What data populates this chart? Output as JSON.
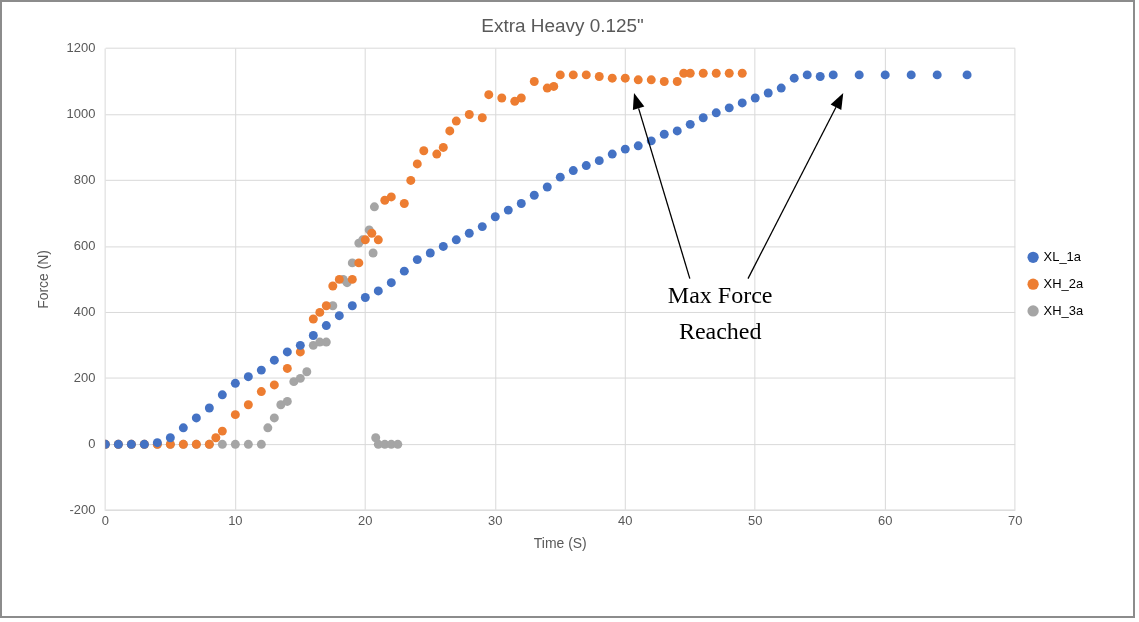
{
  "chart_data": {
    "type": "scatter",
    "title": "Extra Heavy 0.125\"",
    "xlabel": "Time (S)",
    "ylabel": "Force (N)",
    "xlim": [
      0,
      70
    ],
    "xticks": [
      0,
      10,
      20,
      30,
      40,
      50,
      60,
      70
    ],
    "ylim": [
      -200,
      1200
    ],
    "yticks": [
      -200,
      0,
      200,
      400,
      600,
      800,
      1000,
      1200
    ],
    "grid": true,
    "legend": "right",
    "marker": "circle",
    "annotations": [
      "Max Force Reached"
    ],
    "series": [
      {
        "name": "XL_1a",
        "color": "#4472c4",
        "x": [
          0,
          1,
          2,
          3,
          4,
          5,
          6,
          7,
          8,
          9,
          10,
          11,
          12,
          13,
          14,
          15,
          16,
          17,
          18,
          19,
          20,
          21,
          22,
          23,
          24,
          25,
          26,
          27,
          28,
          29,
          30,
          31,
          32,
          33,
          34,
          35,
          36,
          37,
          38,
          39,
          40,
          41,
          42,
          43,
          44,
          45,
          46,
          47,
          48,
          49,
          50,
          51,
          52,
          53,
          54,
          55,
          56,
          58,
          60,
          62,
          64,
          66.3
        ],
        "values": [
          0,
          0,
          0,
          0,
          5,
          20,
          50,
          80,
          110,
          150,
          185,
          205,
          225,
          255,
          280,
          300,
          330,
          360,
          390,
          420,
          445,
          465,
          490,
          525,
          560,
          580,
          600,
          620,
          640,
          660,
          690,
          710,
          730,
          755,
          780,
          810,
          830,
          845,
          860,
          880,
          895,
          905,
          920,
          940,
          950,
          970,
          990,
          1005,
          1020,
          1035,
          1050,
          1065,
          1080,
          1110,
          1120,
          1115,
          1120,
          1120,
          1120,
          1120,
          1120,
          1120
        ]
      },
      {
        "name": "XH_2a",
        "color": "#ed7d31",
        "x": [
          0,
          1,
          2,
          3,
          4,
          5,
          6,
          7,
          8,
          8.5,
          9,
          10,
          11,
          12,
          13,
          14,
          15,
          16,
          16.5,
          17,
          17.5,
          18,
          19,
          19.5,
          20,
          20.5,
          21,
          21.5,
          22,
          23,
          23.5,
          24,
          24.5,
          25.5,
          26,
          26.5,
          27,
          28,
          29,
          29.5,
          30.5,
          31.5,
          32,
          33,
          34,
          34.5,
          35,
          36,
          37,
          38,
          39,
          40,
          41,
          42,
          43,
          44,
          44.5,
          45,
          46,
          47,
          48,
          49
        ],
        "values": [
          0,
          0,
          0,
          0,
          0,
          0,
          0,
          0,
          0,
          20,
          40,
          90,
          120,
          160,
          180,
          230,
          280,
          380,
          400,
          420,
          480,
          500,
          500,
          550,
          620,
          640,
          620,
          740,
          750,
          730,
          800,
          850,
          890,
          880,
          900,
          950,
          980,
          1000,
          990,
          1060,
          1050,
          1040,
          1050,
          1100,
          1080,
          1085,
          1120,
          1120,
          1120,
          1115,
          1110,
          1110,
          1105,
          1105,
          1100,
          1100,
          1125,
          1125,
          1125,
          1125,
          1125,
          1125
        ]
      },
      {
        "name": "XH_3a",
        "color": "#a5a5a5",
        "x": [
          0,
          1,
          2,
          3,
          4,
          5,
          6,
          7,
          8,
          9,
          10,
          11,
          12,
          12.5,
          13,
          13.5,
          14,
          14.5,
          15,
          15.5,
          16,
          16.5,
          17,
          17.5,
          18.3,
          18.6,
          19,
          19.5,
          19.8,
          20.3,
          20.6,
          20.7,
          20.8,
          21,
          21.5,
          22,
          22.5
        ],
        "values": [
          0,
          0,
          0,
          0,
          0,
          0,
          0,
          0,
          0,
          0,
          0,
          0,
          0,
          50,
          80,
          120,
          130,
          190,
          200,
          220,
          300,
          310,
          310,
          420,
          500,
          490,
          550,
          610,
          620,
          650,
          580,
          720,
          20,
          0,
          0,
          0,
          0
        ]
      }
    ]
  }
}
